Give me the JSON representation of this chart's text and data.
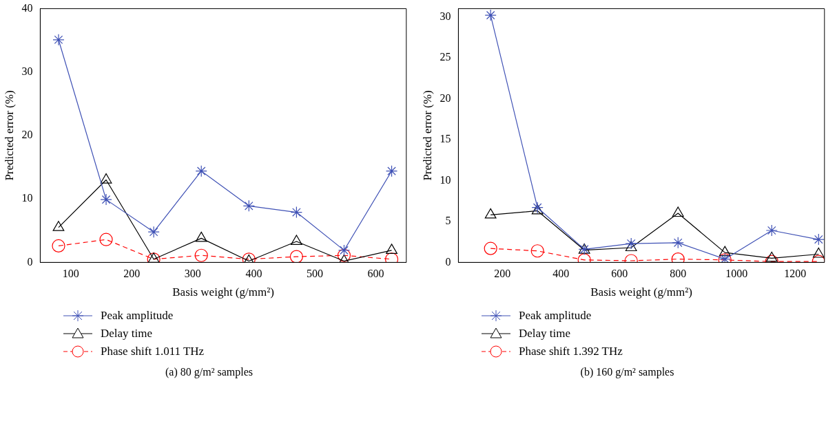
{
  "chart_data": [
    {
      "type": "line",
      "title": "(a)  80 g/m² samples",
      "xlabel": "Basis weight (g/mm²)",
      "ylabel": "Predicted error (%)",
      "xlim": [
        50,
        650
      ],
      "xticks": [
        100,
        200,
        300,
        400,
        500,
        600
      ],
      "ylim": [
        0,
        40
      ],
      "yticks": [
        0,
        10,
        20,
        30,
        40
      ],
      "grid": false,
      "legend": "bottom",
      "x": [
        80,
        158,
        236,
        314,
        392,
        470,
        548,
        626
      ],
      "series": [
        {
          "name": "Peak amplitude",
          "color": "#3f51b5",
          "marker": "cross",
          "line_style": "solid",
          "values": [
            35.1,
            9.9,
            4.8,
            14.4,
            8.9,
            7.9,
            1.9,
            14.4
          ]
        },
        {
          "name": "Delay time",
          "color": "#000000",
          "marker": "triangle",
          "line_style": "solid",
          "values": [
            5.5,
            13,
            0.5,
            3.8,
            0.2,
            3.3,
            0.2,
            1.9
          ]
        },
        {
          "name": "Phase shift 1.011 THz",
          "color": "#ff0000",
          "marker": "circle",
          "line_style": "dashed",
          "values": [
            2.6,
            3.6,
            0.5,
            1.1,
            0.5,
            0.9,
            1.1,
            0.5
          ]
        }
      ]
    },
    {
      "type": "line",
      "title": "(b)  160 g/m² samples",
      "xlabel": "Basis weight (g/mm²)",
      "ylabel": "Predicted error (%)",
      "xlim": [
        50,
        1300
      ],
      "xticks": [
        200,
        400,
        600,
        800,
        1000,
        1200
      ],
      "ylim": [
        0,
        31
      ],
      "yticks": [
        0,
        5,
        10,
        15,
        20,
        25,
        30
      ],
      "grid": false,
      "legend": "bottom",
      "x": [
        160,
        320,
        480,
        640,
        800,
        960,
        1120,
        1280
      ],
      "series": [
        {
          "name": "Peak amplitude",
          "color": "#3f51b5",
          "marker": "cross",
          "line_style": "solid",
          "values": [
            30.2,
            6.7,
            1.6,
            2.3,
            2.4,
            0.4,
            3.9,
            2.8
          ]
        },
        {
          "name": "Delay time",
          "color": "#000000",
          "marker": "triangle",
          "line_style": "solid",
          "values": [
            5.8,
            6.3,
            1.5,
            1.8,
            6.0,
            1.2,
            0.5,
            1.0
          ]
        },
        {
          "name": "Phase shift 1.392 THz",
          "color": "#ff0000",
          "marker": "circle",
          "line_style": "dashed",
          "values": [
            1.7,
            1.4,
            0.3,
            0.2,
            0.4,
            0.3,
            0.1,
            0.1
          ]
        }
      ]
    }
  ]
}
